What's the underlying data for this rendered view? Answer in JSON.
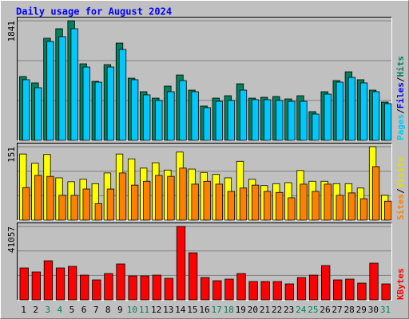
{
  "title": "Daily usage for August 2024",
  "chart_data": [
    {
      "type": "bar",
      "ylim": [
        0,
        1841
      ],
      "yticks": [
        1841
      ],
      "ylabel_parts": [
        {
          "text": "Pages",
          "color": "#00c8ff"
        },
        {
          "text": "/",
          "color": "#000000"
        },
        {
          "text": "Files",
          "color": "#0000ff"
        },
        {
          "text": "/",
          "color": "#000000"
        },
        {
          "text": "Hits",
          "color": "#00805c"
        }
      ],
      "series": [
        {
          "name": "Hits",
          "color": "#00805c",
          "values": [
            982,
            884,
            1571,
            1718,
            1841,
            1178,
            908,
            1166,
            1497,
            957,
            749,
            650,
            835,
            1006,
            773,
            528,
            650,
            687,
            871,
            650,
            663,
            675,
            638,
            687,
            442,
            749,
            920,
            1055,
            933,
            773,
            589
          ]
        },
        {
          "name": "Pages",
          "color": "#00c8ff",
          "values": [
            933,
            810,
            1522,
            1596,
            1718,
            1129,
            896,
            1129,
            1399,
            933,
            700,
            614,
            749,
            920,
            749,
            503,
            601,
            614,
            773,
            626,
            626,
            614,
            601,
            601,
            405,
            712,
            896,
            969,
            884,
            749,
            565
          ]
        }
      ]
    },
    {
      "type": "bar",
      "ylim": [
        0,
        151
      ],
      "yticks": [
        151
      ],
      "ylabel_parts": [
        {
          "text": "Sites",
          "color": "#ff8000"
        },
        {
          "text": "/",
          "color": "#000000"
        },
        {
          "text": "Visits",
          "color": "#e0e000"
        }
      ],
      "series": [
        {
          "name": "Visits",
          "color": "#ffff00",
          "values": [
            136,
            117,
            135,
            87,
            79,
            84,
            75,
            97,
            136,
            126,
            107,
            118,
            103,
            140,
            105,
            98,
            94,
            87,
            121,
            84,
            71,
            75,
            77,
            102,
            80,
            80,
            75,
            75,
            66,
            151,
            51
          ]
        },
        {
          "name": "Sites",
          "color": "#ff8000",
          "values": [
            67,
            92,
            90,
            51,
            51,
            64,
            34,
            64,
            97,
            72,
            80,
            92,
            90,
            107,
            74,
            80,
            74,
            59,
            66,
            72,
            59,
            57,
            46,
            74,
            59,
            74,
            51,
            56,
            44,
            110,
            39
          ]
        }
      ]
    },
    {
      "type": "bar",
      "ylim": [
        0,
        41057
      ],
      "yticks": [
        41057
      ],
      "ylabel_parts": [
        {
          "text": "KBytes",
          "color": "#ff0000"
        }
      ],
      "categories": [
        "1",
        "2",
        "3",
        "4",
        "5",
        "6",
        "7",
        "8",
        "9",
        "10",
        "11",
        "12",
        "13",
        "14",
        "15",
        "16",
        "17",
        "18",
        "19",
        "20",
        "21",
        "22",
        "23",
        "24",
        "25",
        "26",
        "27",
        "28",
        "29",
        "30",
        "31"
      ],
      "category_colors": [
        "#000000",
        "#000000",
        "#00805c",
        "#00805c",
        "#000000",
        "#000000",
        "#000000",
        "#000000",
        "#000000",
        "#00805c",
        "#00805c",
        "#000000",
        "#000000",
        "#000000",
        "#000000",
        "#000000",
        "#00805c",
        "#00805c",
        "#000000",
        "#000000",
        "#000000",
        "#000000",
        "#000000",
        "#00805c",
        "#00805c",
        "#000000",
        "#000000",
        "#000000",
        "#000000",
        "#000000",
        "#00805c"
      ],
      "series": [
        {
          "name": "KBytes",
          "color": "#ff0000",
          "values": [
            17851,
            15620,
            21867,
            17851,
            18744,
            13834,
            11157,
            14727,
            20082,
            13388,
            13388,
            13834,
            12049,
            41057,
            26330,
            12496,
            10711,
            11603,
            14727,
            10264,
            10264,
            10264,
            8925,
            12496,
            13834,
            19190,
            11157,
            11603,
            9372,
            20528,
            8925
          ]
        }
      ]
    }
  ]
}
